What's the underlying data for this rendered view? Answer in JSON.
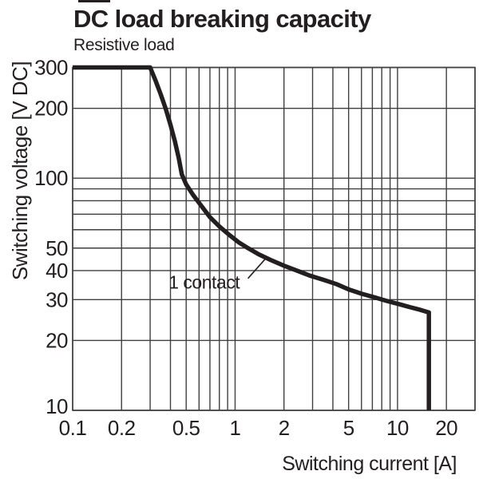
{
  "title": "DC load breaking capacity",
  "subtitle": "Resistive load",
  "colors": {
    "ink": "#231f20",
    "grid": "#3f3f3f",
    "background": "#ffffff"
  },
  "chart_data": {
    "type": "line",
    "title": "DC load breaking capacity",
    "subtitle": "Resistive load",
    "xlabel": "Switching current [A]",
    "ylabel": "Switching voltage [V DC]",
    "x_scale": "log",
    "y_scale": "log",
    "xlim": [
      0.1,
      30
    ],
    "ylim": [
      10,
      300
    ],
    "x_tick_values": [
      0.1,
      0.2,
      0.5,
      1,
      2,
      5,
      10,
      20
    ],
    "x_tick_labels": [
      "0.1",
      "0.2",
      "0.5",
      "1",
      "2",
      "5",
      "10",
      "20"
    ],
    "y_tick_values": [
      300,
      200,
      100,
      50,
      40,
      30,
      20,
      10
    ],
    "y_tick_labels": [
      "300",
      "200",
      "100",
      "50",
      "40",
      "30",
      "20",
      "10"
    ],
    "x_gridlines": [
      0.1,
      0.2,
      0.3,
      0.4,
      0.5,
      0.6,
      0.7,
      0.8,
      0.9,
      1,
      2,
      3,
      4,
      5,
      6,
      7,
      8,
      9,
      10,
      20,
      30
    ],
    "y_gridlines": [
      10,
      20,
      30,
      40,
      50,
      60,
      70,
      80,
      90,
      100,
      200,
      300
    ],
    "grid": true,
    "legend_position": "none",
    "series": [
      {
        "name": "1 contact",
        "points": [
          [
            0.1,
            300
          ],
          [
            0.3,
            300
          ],
          [
            0.325,
            262
          ],
          [
            0.35,
            228
          ],
          [
            0.375,
            198
          ],
          [
            0.4,
            170
          ],
          [
            0.425,
            145
          ],
          [
            0.45,
            122
          ],
          [
            0.47,
            104
          ],
          [
            0.5,
            94
          ],
          [
            0.55,
            85
          ],
          [
            0.62,
            76
          ],
          [
            0.7,
            68
          ],
          [
            0.8,
            62
          ],
          [
            0.92,
            57
          ],
          [
            1.05,
            53
          ],
          [
            1.2,
            50
          ],
          [
            1.4,
            47
          ],
          [
            1.65,
            44.5
          ],
          [
            2.0,
            42
          ],
          [
            2.4,
            40
          ],
          [
            2.9,
            38
          ],
          [
            3.5,
            36.5
          ],
          [
            4.2,
            35
          ],
          [
            5.0,
            33.2
          ],
          [
            6.0,
            31.8
          ],
          [
            7.2,
            30.7
          ],
          [
            8.6,
            29.6
          ],
          [
            10.2,
            28.7
          ],
          [
            12.0,
            27.8
          ],
          [
            13.8,
            27.1
          ],
          [
            15.6,
            26.4
          ],
          [
            15.6,
            10
          ]
        ]
      }
    ],
    "annotation": {
      "text": "1 contact",
      "text_pos": [
        0.39,
        33.4
      ],
      "leader_from": [
        1.2,
        37
      ],
      "leader_to": [
        1.56,
        45.5
      ]
    }
  }
}
